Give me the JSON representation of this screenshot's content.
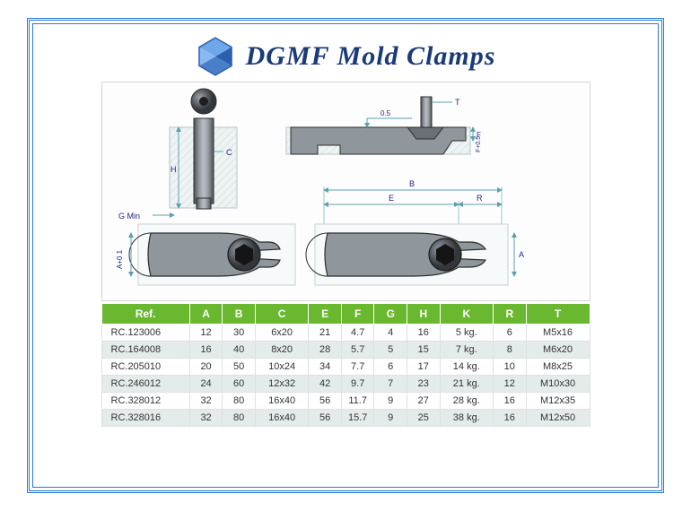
{
  "brand": {
    "name": "DGMF Mold Clamps",
    "logo_color": "#2a5fb0"
  },
  "frame": {
    "border_color": "#2a7ad4"
  },
  "drawing": {
    "labels": {
      "gmin": "G Min",
      "h": "H",
      "c": "C",
      "a": "A",
      "b": "B",
      "e": "E",
      "r": "R",
      "t": "T",
      "f": "F",
      "a01": "A+0 1",
      "a0": "A*0",
      "fp": "F+0.5",
      "zero5": "0.5"
    },
    "colors": {
      "bg_hatch": "#e8eeef",
      "steel": "#737a80",
      "steel_dark": "#4e5358",
      "dim_line": "#5aa0b0",
      "outline": "#3c3c3c"
    }
  },
  "table": {
    "header_bg": "#6ab82f",
    "header_fg": "#ffffff",
    "row_odd": "#ffffff",
    "row_even": "#e4eceb",
    "columns": [
      "Ref.",
      "A",
      "B",
      "C",
      "E",
      "F",
      "G",
      "H",
      "K",
      "R",
      "T"
    ],
    "rows": [
      [
        "RC.123006",
        "12",
        "30",
        "6x20",
        "21",
        "4.7",
        "4",
        "16",
        "5 kg.",
        "6",
        "M5x16"
      ],
      [
        "RC.164008",
        "16",
        "40",
        "8x20",
        "28",
        "5.7",
        "5",
        "15",
        "7 kg.",
        "8",
        "M6x20"
      ],
      [
        "RC.205010",
        "20",
        "50",
        "10x24",
        "34",
        "7.7",
        "6",
        "17",
        "14 kg.",
        "10",
        "M8x25"
      ],
      [
        "RC.246012",
        "24",
        "60",
        "12x32",
        "42",
        "9.7",
        "7",
        "23",
        "21 kg.",
        "12",
        "M10x30"
      ],
      [
        "RC.328012",
        "32",
        "80",
        "16x40",
        "56",
        "11.7",
        "9",
        "27",
        "28 kg.",
        "16",
        "M12x35"
      ],
      [
        "RC.328016",
        "32",
        "80",
        "16x40",
        "56",
        "15.7",
        "9",
        "25",
        "38 kg.",
        "16",
        "M12x50"
      ]
    ]
  }
}
